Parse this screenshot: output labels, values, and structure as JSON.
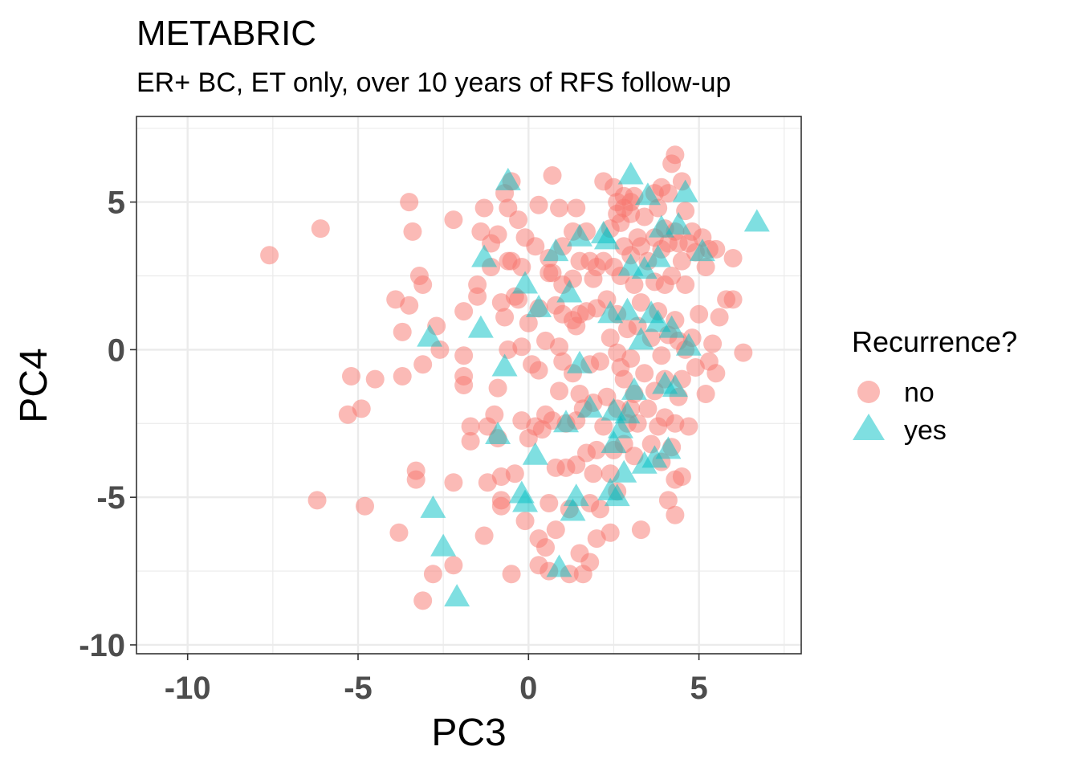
{
  "chart_data": {
    "type": "scatter",
    "title": "METABRIC",
    "subtitle": "ER+ BC, ET only, over 10 years of RFS follow-up",
    "xlabel": "PC3",
    "ylabel": "PC4",
    "xlim": [
      -11.5,
      8
    ],
    "ylim": [
      -10.3,
      7.9
    ],
    "xticks": [
      -10,
      -5,
      0,
      5
    ],
    "yticks": [
      -10,
      -5,
      0,
      5
    ],
    "grid": true,
    "legend": {
      "title": "Recurrence?",
      "position": "right"
    },
    "colors": {
      "no": "#F8766D",
      "yes": "#00BFC4"
    },
    "series": [
      {
        "name": "no",
        "marker": "circle",
        "points": [
          [
            -7.6,
            3.2
          ],
          [
            -6.1,
            4.1
          ],
          [
            -6.2,
            -5.1
          ],
          [
            -5.2,
            -0.9
          ],
          [
            -5.3,
            -2.2
          ],
          [
            -4.9,
            -2.0
          ],
          [
            -4.8,
            -5.3
          ],
          [
            -4.5,
            -1.0
          ],
          [
            -3.9,
            1.7
          ],
          [
            -3.8,
            -6.2
          ],
          [
            -3.7,
            0.6
          ],
          [
            -3.7,
            -0.9
          ],
          [
            -3.5,
            1.5
          ],
          [
            -3.5,
            5.0
          ],
          [
            -3.4,
            4.0
          ],
          [
            -3.3,
            -4.1
          ],
          [
            -3.3,
            -4.4
          ],
          [
            -3.2,
            2.5
          ],
          [
            -3.1,
            2.2
          ],
          [
            -3.1,
            -0.5
          ],
          [
            -3.1,
            -8.5
          ],
          [
            -2.8,
            -7.6
          ],
          [
            -2.7,
            0.8
          ],
          [
            -2.6,
            0.0
          ],
          [
            -2.2,
            4.4
          ],
          [
            -2.2,
            -4.5
          ],
          [
            -2.2,
            -7.3
          ],
          [
            -1.9,
            1.3
          ],
          [
            -1.9,
            -0.2
          ],
          [
            -1.9,
            -0.9
          ],
          [
            -1.9,
            -1.2
          ],
          [
            -1.7,
            -2.6
          ],
          [
            -1.7,
            -3.1
          ],
          [
            -1.5,
            2.2
          ],
          [
            -1.5,
            1.8
          ],
          [
            -1.4,
            4.0
          ],
          [
            -1.3,
            4.8
          ],
          [
            -1.3,
            -6.3
          ],
          [
            -1.2,
            -4.5
          ],
          [
            -1.2,
            -2.6
          ],
          [
            -1.1,
            3.6
          ],
          [
            -1.1,
            2.8
          ],
          [
            -1.0,
            -2.2
          ],
          [
            -0.9,
            3.9
          ],
          [
            -0.9,
            -1.3
          ],
          [
            -0.9,
            -3.0
          ],
          [
            -0.8,
            1.6
          ],
          [
            -0.8,
            -5.1
          ],
          [
            -0.8,
            -5.3
          ],
          [
            -0.8,
            -4.3
          ],
          [
            -0.7,
            5.3
          ],
          [
            -0.7,
            1.1
          ],
          [
            -0.6,
            3.0
          ],
          [
            -0.6,
            4.8
          ],
          [
            -0.6,
            0.0
          ],
          [
            -0.5,
            5.7
          ],
          [
            -0.5,
            3.0
          ],
          [
            -0.5,
            -7.6
          ],
          [
            -0.4,
            1.8
          ],
          [
            -0.4,
            -4.2
          ],
          [
            -0.3,
            4.4
          ],
          [
            -0.3,
            1.7
          ],
          [
            -0.2,
            2.8
          ],
          [
            -0.2,
            0.1
          ],
          [
            -0.2,
            -2.4
          ],
          [
            -0.1,
            3.8
          ],
          [
            -0.1,
            -5.8
          ],
          [
            0.0,
            0.9
          ],
          [
            0.0,
            -3.0
          ],
          [
            0.1,
            -0.5
          ],
          [
            0.2,
            3.5
          ],
          [
            0.2,
            -2.6
          ],
          [
            0.3,
            4.9
          ],
          [
            0.3,
            1.4
          ],
          [
            0.3,
            -0.7
          ],
          [
            0.3,
            -6.4
          ],
          [
            0.3,
            -7.3
          ],
          [
            0.4,
            -2.7
          ],
          [
            0.5,
            0.3
          ],
          [
            0.5,
            -2.2
          ],
          [
            0.5,
            -6.7
          ],
          [
            0.6,
            3.1
          ],
          [
            0.6,
            2.6
          ],
          [
            0.6,
            -5.2
          ],
          [
            0.6,
            -7.5
          ],
          [
            0.7,
            2.6
          ],
          [
            0.7,
            5.9
          ],
          [
            0.7,
            -2.4
          ],
          [
            0.8,
            1.5
          ],
          [
            0.8,
            -4.0
          ],
          [
            0.8,
            -6.1
          ],
          [
            0.9,
            4.8
          ],
          [
            0.9,
            0.1
          ],
          [
            0.9,
            -1.4
          ],
          [
            1.0,
            2.2
          ],
          [
            1.0,
            3.5
          ],
          [
            1.0,
            1.2
          ],
          [
            1.0,
            -0.4
          ],
          [
            1.1,
            -2.5
          ],
          [
            1.1,
            -4.0
          ],
          [
            1.2,
            -7.6
          ],
          [
            1.2,
            -5.4
          ],
          [
            1.3,
            4.0
          ],
          [
            1.3,
            2.4
          ],
          [
            1.3,
            1.0
          ],
          [
            1.3,
            -0.8
          ],
          [
            1.4,
            4.8
          ],
          [
            1.4,
            0.8
          ],
          [
            1.4,
            -3.9
          ],
          [
            1.4,
            -2.4
          ],
          [
            1.5,
            3.0
          ],
          [
            1.5,
            1.2
          ],
          [
            1.5,
            -1.5
          ],
          [
            1.5,
            -6.9
          ],
          [
            1.6,
            -7.6
          ],
          [
            1.6,
            -2.0
          ],
          [
            1.7,
            4.0
          ],
          [
            1.7,
            1.3
          ],
          [
            1.7,
            -3.5
          ],
          [
            1.8,
            3.0
          ],
          [
            1.8,
            -0.5
          ],
          [
            1.8,
            -5.2
          ],
          [
            1.8,
            -7.2
          ],
          [
            1.9,
            2.4
          ],
          [
            1.9,
            -1.8
          ],
          [
            1.9,
            -4.2
          ],
          [
            2.0,
            2.8
          ],
          [
            2.0,
            1.4
          ],
          [
            2.0,
            -6.4
          ],
          [
            2.0,
            -3.4
          ],
          [
            2.1,
            -0.4
          ],
          [
            2.1,
            -5.4
          ],
          [
            2.2,
            5.7
          ],
          [
            2.2,
            3.0
          ],
          [
            2.2,
            -2.6
          ],
          [
            2.3,
            1.7
          ],
          [
            2.3,
            -1.6
          ],
          [
            2.4,
            4.1
          ],
          [
            2.4,
            0.4
          ],
          [
            2.4,
            -4.2
          ],
          [
            2.4,
            -6.2
          ],
          [
            2.5,
            5.5
          ],
          [
            2.5,
            2.8
          ],
          [
            2.5,
            -3.4
          ],
          [
            2.6,
            4.6
          ],
          [
            2.6,
            5.0
          ],
          [
            2.6,
            1.2
          ],
          [
            2.6,
            -0.1
          ],
          [
            2.6,
            -2.0
          ],
          [
            2.6,
            -4.8
          ],
          [
            2.7,
            4.3
          ],
          [
            2.7,
            2.5
          ],
          [
            2.7,
            -0.6
          ],
          [
            2.8,
            4.8
          ],
          [
            2.8,
            5.2
          ],
          [
            2.8,
            3.5
          ],
          [
            2.8,
            -1.0
          ],
          [
            2.8,
            -3.2
          ],
          [
            2.9,
            0.7
          ],
          [
            2.9,
            -2.5
          ],
          [
            3.0,
            4.6
          ],
          [
            3.0,
            5.0
          ],
          [
            3.0,
            3.2
          ],
          [
            3.0,
            -0.3
          ],
          [
            3.0,
            -2.0
          ],
          [
            3.1,
            5.2
          ],
          [
            3.1,
            2.2
          ],
          [
            3.1,
            -1.5
          ],
          [
            3.1,
            -3.6
          ],
          [
            3.2,
            3.8
          ],
          [
            3.2,
            0.8
          ],
          [
            3.2,
            -2.5
          ],
          [
            3.3,
            3.5
          ],
          [
            3.3,
            1.6
          ],
          [
            3.3,
            -6.1
          ],
          [
            3.4,
            4.5
          ],
          [
            3.4,
            -0.8
          ],
          [
            3.5,
            3.0
          ],
          [
            3.5,
            -2.0
          ],
          [
            3.6,
            0.4
          ],
          [
            3.6,
            -3.2
          ],
          [
            3.7,
            5.3
          ],
          [
            3.7,
            3.8
          ],
          [
            3.7,
            2.3
          ],
          [
            3.7,
            -1.4
          ],
          [
            3.8,
            4.8
          ],
          [
            3.8,
            1.3
          ],
          [
            3.8,
            -2.6
          ],
          [
            3.9,
            5.5
          ],
          [
            3.9,
            3.4
          ],
          [
            3.9,
            -0.2
          ],
          [
            3.9,
            -3.8
          ],
          [
            4.0,
            4.1
          ],
          [
            4.0,
            2.2
          ],
          [
            4.0,
            -1.0
          ],
          [
            4.0,
            -2.3
          ],
          [
            4.1,
            5.3
          ],
          [
            4.1,
            3.6
          ],
          [
            4.1,
            0.5
          ],
          [
            4.1,
            -5.1
          ],
          [
            4.2,
            6.3
          ],
          [
            4.2,
            2.5
          ],
          [
            4.2,
            -3.3
          ],
          [
            4.3,
            6.6
          ],
          [
            4.3,
            4.0
          ],
          [
            4.3,
            1.0
          ],
          [
            4.3,
            -2.5
          ],
          [
            4.3,
            -4.4
          ],
          [
            4.3,
            -5.6
          ],
          [
            4.4,
            3.6
          ],
          [
            4.4,
            0.3
          ],
          [
            4.4,
            -1.6
          ],
          [
            4.5,
            5.7
          ],
          [
            4.5,
            3.0
          ],
          [
            4.5,
            -1.0
          ],
          [
            4.5,
            -4.3
          ],
          [
            4.6,
            4.7
          ],
          [
            4.6,
            2.2
          ],
          [
            4.6,
            0.0
          ],
          [
            4.7,
            3.6
          ],
          [
            4.7,
            -2.6
          ],
          [
            4.8,
            4.0
          ],
          [
            4.8,
            0.4
          ],
          [
            4.9,
            3.3
          ],
          [
            4.9,
            -0.6
          ],
          [
            5.0,
            1.2
          ],
          [
            5.1,
            3.8
          ],
          [
            5.2,
            2.8
          ],
          [
            5.2,
            -1.5
          ],
          [
            5.3,
            3.4
          ],
          [
            5.3,
            -0.4
          ],
          [
            5.4,
            0.2
          ],
          [
            5.5,
            3.4
          ],
          [
            5.5,
            -0.8
          ],
          [
            5.6,
            1.1
          ],
          [
            5.8,
            1.7
          ],
          [
            6.0,
            1.7
          ],
          [
            6.0,
            3.1
          ],
          [
            6.3,
            -0.1
          ]
        ]
      },
      {
        "name": "yes",
        "marker": "triangle",
        "points": [
          [
            -2.9,
            0.4
          ],
          [
            -2.8,
            -5.4
          ],
          [
            -2.5,
            -6.7
          ],
          [
            -2.1,
            -8.4
          ],
          [
            -1.4,
            0.7
          ],
          [
            -1.3,
            3.1
          ],
          [
            -0.9,
            -2.9
          ],
          [
            -0.7,
            -0.6
          ],
          [
            -0.6,
            5.7
          ],
          [
            -0.2,
            -4.9
          ],
          [
            -0.1,
            2.2
          ],
          [
            -0.1,
            -5.2
          ],
          [
            0.2,
            -3.6
          ],
          [
            0.3,
            1.4
          ],
          [
            0.8,
            3.3
          ],
          [
            0.9,
            -7.4
          ],
          [
            1.1,
            -2.5
          ],
          [
            1.2,
            1.9
          ],
          [
            1.3,
            -5.5
          ],
          [
            1.4,
            -5.0
          ],
          [
            1.5,
            3.8
          ],
          [
            1.5,
            -0.5
          ],
          [
            1.8,
            -2.0
          ],
          [
            2.2,
            3.9
          ],
          [
            2.3,
            3.7
          ],
          [
            2.4,
            1.2
          ],
          [
            2.4,
            -4.8
          ],
          [
            2.5,
            -2.1
          ],
          [
            2.5,
            -3.2
          ],
          [
            2.6,
            -5.0
          ],
          [
            2.7,
            -2.7
          ],
          [
            2.8,
            -4.2
          ],
          [
            2.9,
            1.3
          ],
          [
            2.9,
            -2.2
          ],
          [
            3.0,
            5.9
          ],
          [
            3.0,
            2.8
          ],
          [
            3.1,
            -1.4
          ],
          [
            3.3,
            0.3
          ],
          [
            3.4,
            2.7
          ],
          [
            3.4,
            -3.9
          ],
          [
            3.5,
            5.2
          ],
          [
            3.6,
            1.2
          ],
          [
            3.7,
            -3.7
          ],
          [
            3.8,
            3.1
          ],
          [
            3.8,
            0.9
          ],
          [
            3.9,
            4.1
          ],
          [
            4.0,
            -1.2
          ],
          [
            4.1,
            -3.4
          ],
          [
            4.2,
            0.7
          ],
          [
            4.3,
            -1.3
          ],
          [
            4.4,
            4.2
          ],
          [
            4.6,
            5.3
          ],
          [
            4.7,
            0.1
          ],
          [
            5.1,
            3.3
          ],
          [
            6.7,
            4.3
          ]
        ]
      }
    ]
  }
}
